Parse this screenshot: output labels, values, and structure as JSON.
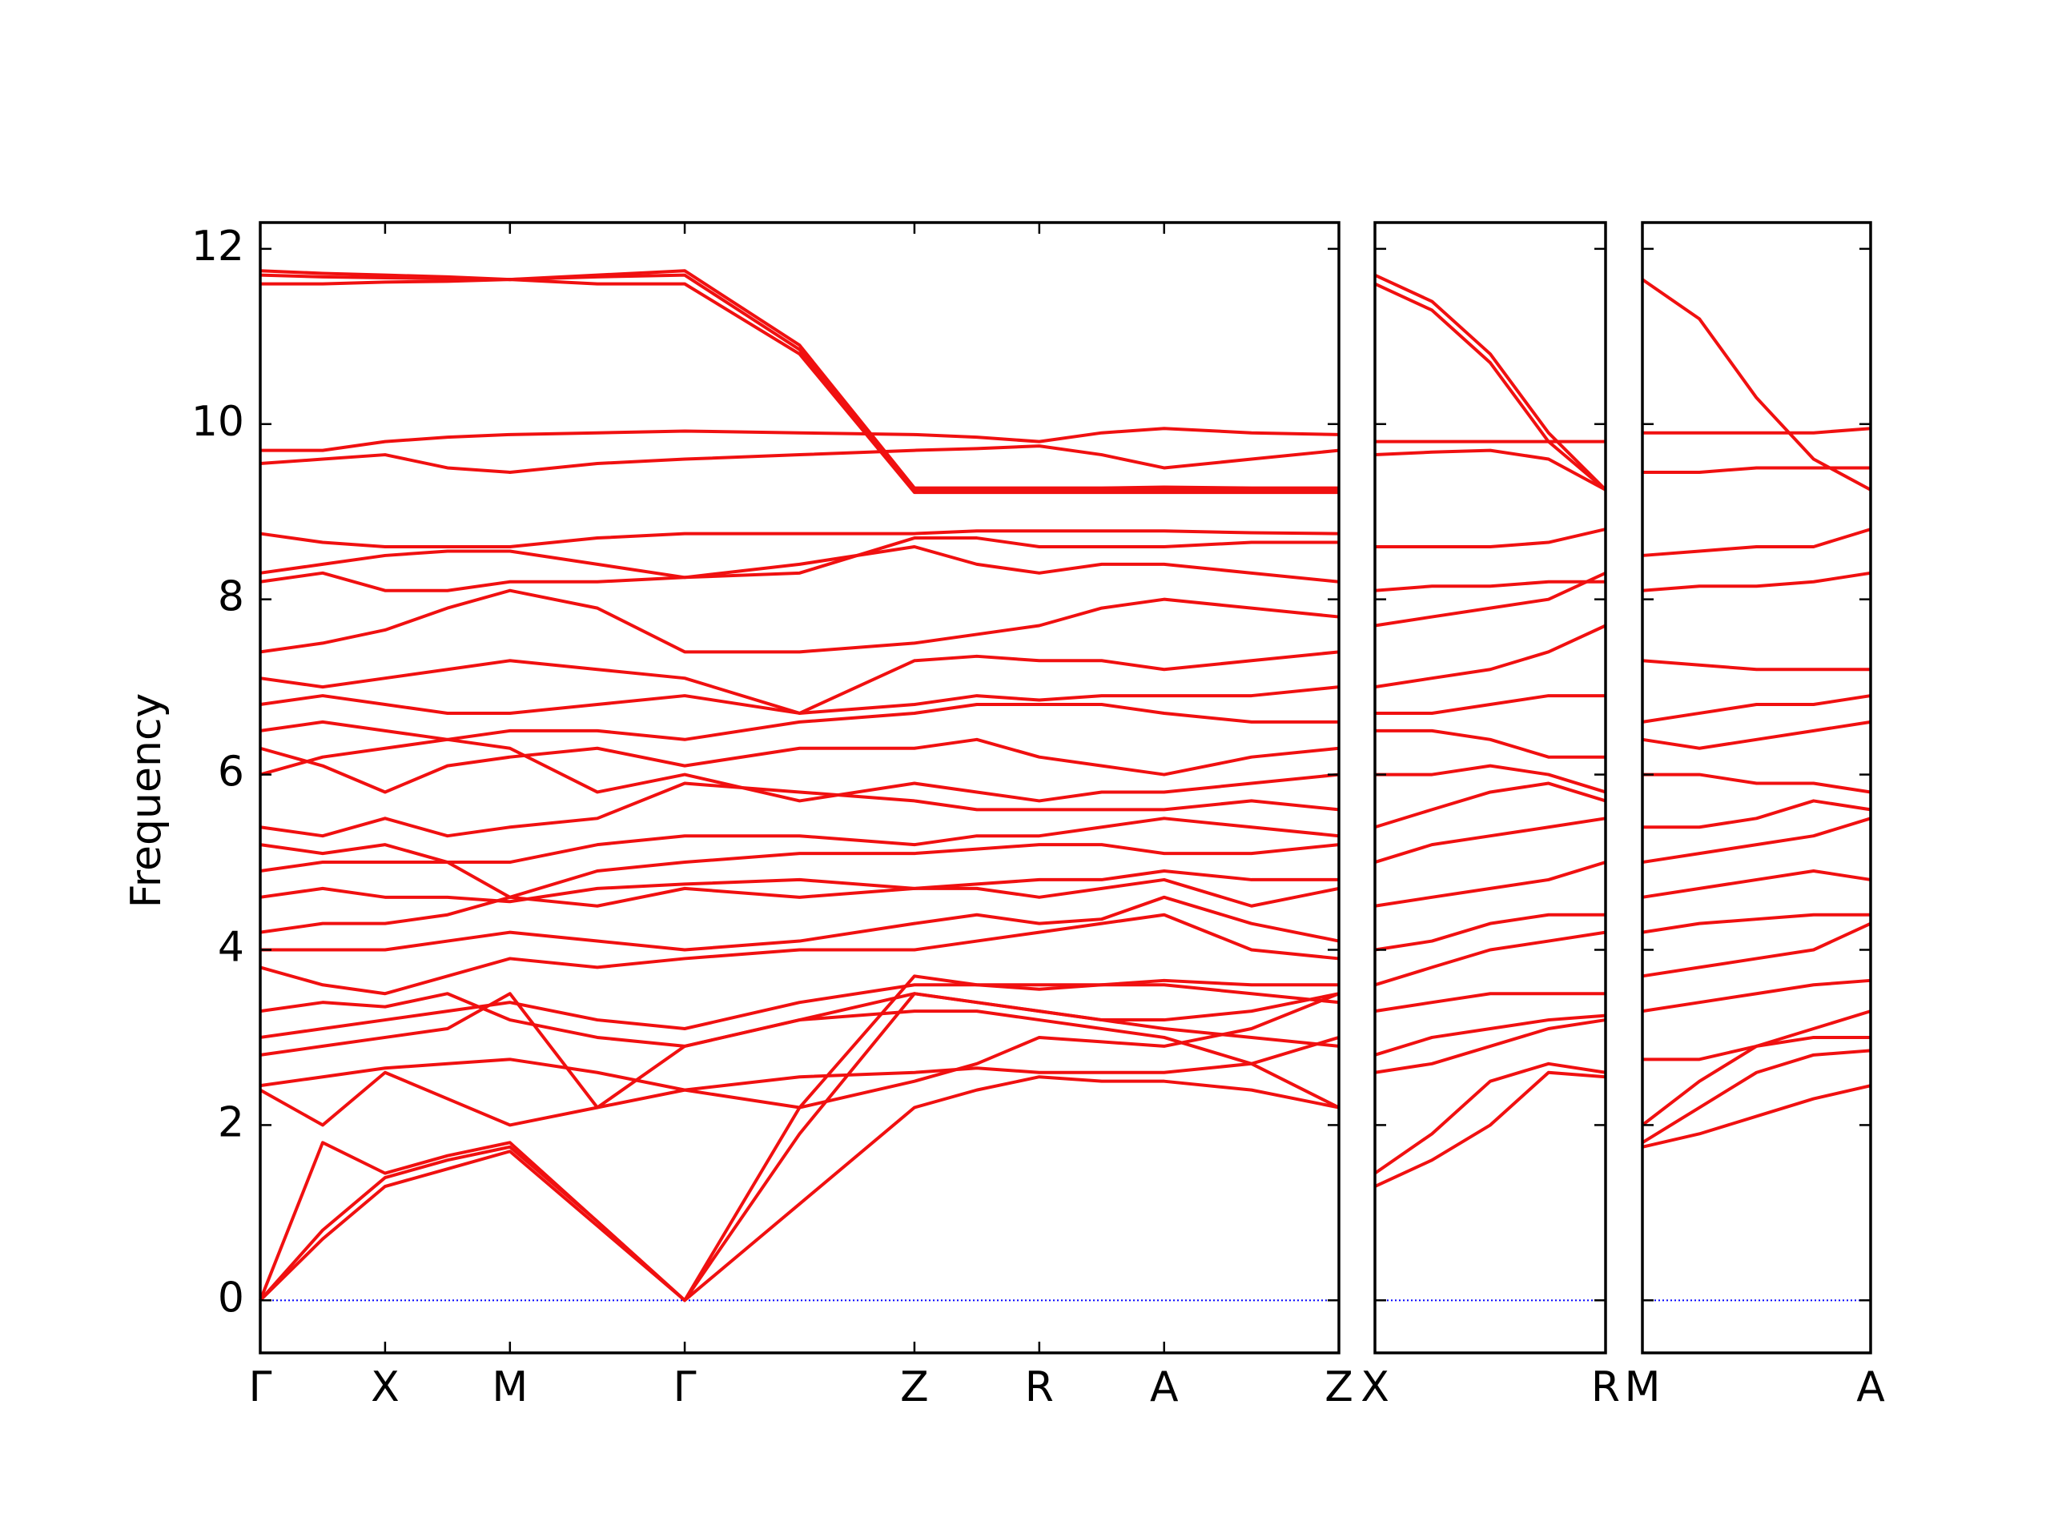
{
  "chart_data": [
    {
      "type": "line",
      "ylabel": "Frequency",
      "color": "#f01010",
      "zero_line_color": "#0000ff",
      "x": [
        0,
        0.25,
        0.5,
        0.75,
        1.0,
        1.35,
        1.7,
        2.16,
        2.62,
        2.87,
        3.12,
        3.37,
        3.62,
        3.97,
        4.32
      ],
      "xlim": [
        0,
        4.32
      ],
      "xticks": [
        {
          "value": 0,
          "label": "Γ"
        },
        {
          "value": 0.5,
          "label": "X"
        },
        {
          "value": 1.0,
          "label": "M"
        },
        {
          "value": 1.7,
          "label": "Γ"
        },
        {
          "value": 2.62,
          "label": "Z"
        },
        {
          "value": 3.12,
          "label": "R"
        },
        {
          "value": 3.62,
          "label": "A"
        },
        {
          "value": 4.32,
          "label": "Z"
        }
      ],
      "ylim": [
        -0.6,
        12.3
      ],
      "yticks": [
        0,
        2,
        4,
        6,
        8,
        10,
        12
      ],
      "series": [
        {
          "values": [
            0,
            0.7,
            1.3,
            1.5,
            1.7,
            0.85,
            0,
            1.1,
            2.2,
            2.4,
            2.55,
            2.5,
            2.5,
            2.4,
            2.2
          ]
        },
        {
          "values": [
            0,
            0.8,
            1.4,
            1.6,
            1.75,
            0.9,
            0,
            1.9,
            3.5,
            3.4,
            3.3,
            3.2,
            3.1,
            3.0,
            2.9
          ]
        },
        {
          "values": [
            0,
            1.8,
            1.45,
            1.65,
            1.8,
            0.9,
            0,
            2.2,
            3.7,
            3.6,
            3.55,
            3.6,
            3.6,
            3.5,
            3.4
          ]
        },
        {
          "values": [
            2.4,
            2.0,
            2.6,
            2.3,
            2.0,
            2.2,
            2.4,
            2.55,
            2.6,
            2.65,
            2.6,
            2.6,
            2.6,
            2.7,
            3.0
          ]
        },
        {
          "values": [
            2.45,
            2.55,
            2.65,
            2.7,
            2.75,
            2.6,
            2.4,
            2.2,
            2.5,
            2.7,
            3.0,
            2.95,
            2.9,
            3.1,
            3.5
          ]
        },
        {
          "values": [
            2.8,
            2.9,
            3.0,
            3.1,
            3.5,
            2.2,
            2.9,
            3.2,
            3.3,
            3.3,
            3.2,
            3.1,
            3.0,
            2.7,
            2.2
          ]
        },
        {
          "values": [
            3.0,
            3.1,
            3.2,
            3.3,
            3.4,
            3.2,
            3.1,
            3.4,
            3.6,
            3.6,
            3.6,
            3.6,
            3.65,
            3.6,
            3.6
          ]
        },
        {
          "values": [
            3.3,
            3.4,
            3.35,
            3.5,
            3.2,
            3.0,
            2.9,
            3.2,
            3.5,
            3.4,
            3.3,
            3.2,
            3.2,
            3.3,
            3.5
          ]
        },
        {
          "values": [
            3.8,
            3.6,
            3.5,
            3.7,
            3.9,
            3.8,
            3.9,
            4.0,
            4.0,
            4.1,
            4.2,
            4.3,
            4.4,
            4.0,
            3.9
          ]
        },
        {
          "values": [
            4.0,
            4.0,
            4.0,
            4.1,
            4.2,
            4.1,
            4.0,
            4.1,
            4.3,
            4.4,
            4.3,
            4.35,
            4.6,
            4.3,
            4.1
          ]
        },
        {
          "values": [
            4.2,
            4.3,
            4.3,
            4.4,
            4.6,
            4.5,
            4.7,
            4.6,
            4.7,
            4.7,
            4.6,
            4.7,
            4.8,
            4.5,
            4.7
          ]
        },
        {
          "values": [
            4.6,
            4.7,
            4.6,
            4.6,
            4.55,
            4.7,
            4.75,
            4.8,
            4.7,
            4.75,
            4.8,
            4.8,
            4.9,
            4.8,
            4.8
          ]
        },
        {
          "values": [
            4.9,
            5.0,
            5.0,
            5.0,
            4.6,
            4.9,
            5.0,
            5.1,
            5.1,
            5.15,
            5.2,
            5.2,
            5.1,
            5.1,
            5.2
          ]
        },
        {
          "values": [
            5.2,
            5.1,
            5.2,
            5.0,
            5.0,
            5.2,
            5.3,
            5.3,
            5.2,
            5.3,
            5.3,
            5.4,
            5.5,
            5.4,
            5.3
          ]
        },
        {
          "values": [
            5.4,
            5.3,
            5.5,
            5.3,
            5.4,
            5.5,
            5.9,
            5.8,
            5.7,
            5.6,
            5.6,
            5.6,
            5.6,
            5.7,
            5.6
          ]
        },
        {
          "values": [
            6.0,
            6.2,
            6.3,
            6.4,
            6.3,
            5.8,
            6.0,
            5.7,
            5.9,
            5.8,
            5.7,
            5.8,
            5.8,
            5.9,
            6.0
          ]
        },
        {
          "values": [
            6.3,
            6.1,
            5.8,
            6.1,
            6.2,
            6.3,
            6.1,
            6.3,
            6.3,
            6.4,
            6.2,
            6.1,
            6.0,
            6.2,
            6.3
          ]
        },
        {
          "values": [
            6.5,
            6.6,
            6.5,
            6.4,
            6.5,
            6.5,
            6.4,
            6.6,
            6.7,
            6.8,
            6.8,
            6.8,
            6.7,
            6.6,
            6.6
          ]
        },
        {
          "values": [
            6.8,
            6.9,
            6.8,
            6.7,
            6.7,
            6.8,
            6.9,
            6.7,
            6.8,
            6.9,
            6.85,
            6.9,
            6.9,
            6.9,
            7.0
          ]
        },
        {
          "values": [
            7.1,
            7.0,
            7.1,
            7.2,
            7.3,
            7.2,
            7.1,
            6.7,
            7.3,
            7.35,
            7.3,
            7.3,
            7.2,
            7.3,
            7.4
          ]
        },
        {
          "values": [
            7.4,
            7.5,
            7.65,
            7.9,
            8.1,
            7.9,
            7.4,
            7.4,
            7.5,
            7.6,
            7.7,
            7.9,
            8.0,
            7.9,
            7.8
          ]
        },
        {
          "values": [
            8.2,
            8.3,
            8.1,
            8.1,
            8.2,
            8.2,
            8.25,
            8.4,
            8.6,
            8.4,
            8.3,
            8.4,
            8.4,
            8.3,
            8.2
          ]
        },
        {
          "values": [
            8.3,
            8.4,
            8.5,
            8.55,
            8.55,
            8.4,
            8.25,
            8.3,
            8.7,
            8.7,
            8.6,
            8.6,
            8.6,
            8.65,
            8.65
          ]
        },
        {
          "values": [
            8.75,
            8.65,
            8.6,
            8.6,
            8.6,
            8.7,
            8.75,
            8.75,
            8.75,
            8.78,
            8.78,
            8.78,
            8.78,
            8.76,
            8.75
          ]
        },
        {
          "values": [
            9.55,
            9.6,
            9.65,
            9.5,
            9.45,
            9.55,
            9.6,
            9.65,
            9.7,
            9.72,
            9.75,
            9.65,
            9.5,
            9.6,
            9.7
          ]
        },
        {
          "values": [
            9.7,
            9.7,
            9.8,
            9.85,
            9.88,
            9.9,
            9.92,
            9.9,
            9.88,
            9.85,
            9.8,
            9.9,
            9.95,
            9.9,
            9.88
          ]
        },
        {
          "values": [
            11.6,
            11.6,
            11.62,
            11.63,
            11.65,
            11.6,
            11.6,
            10.8,
            9.22,
            9.22,
            9.22,
            9.22,
            9.22,
            9.22,
            9.22
          ]
        },
        {
          "values": [
            11.7,
            11.68,
            11.67,
            11.66,
            11.65,
            11.7,
            11.75,
            10.9,
            9.27,
            9.27,
            9.27,
            9.27,
            9.28,
            9.27,
            9.27
          ]
        },
        {
          "values": [
            11.75,
            11.72,
            11.7,
            11.68,
            11.65,
            11.68,
            11.7,
            10.85,
            9.25,
            9.25,
            9.25,
            9.25,
            9.25,
            9.25,
            9.25
          ]
        }
      ]
    },
    {
      "type": "line",
      "color": "#f01010",
      "zero_line_color": "#0000ff",
      "x": [
        0,
        0.23,
        0.465,
        0.7,
        0.93
      ],
      "xlim": [
        0,
        0.93
      ],
      "xticks": [
        {
          "value": 0,
          "label": "X"
        },
        {
          "value": 0.93,
          "label": "R"
        }
      ],
      "ylim": [
        -0.6,
        12.3
      ],
      "yticks": [
        0,
        2,
        4,
        6,
        8,
        10,
        12
      ],
      "series": [
        {
          "values": [
            1.3,
            1.6,
            2.0,
            2.6,
            2.55
          ]
        },
        {
          "values": [
            1.45,
            1.9,
            2.5,
            2.7,
            2.6
          ]
        },
        {
          "values": [
            2.6,
            2.7,
            2.9,
            3.1,
            3.2
          ]
        },
        {
          "values": [
            2.8,
            3.0,
            3.1,
            3.2,
            3.25
          ]
        },
        {
          "values": [
            3.3,
            3.4,
            3.5,
            3.5,
            3.5
          ]
        },
        {
          "values": [
            3.6,
            3.8,
            4.0,
            4.1,
            4.2
          ]
        },
        {
          "values": [
            4.0,
            4.1,
            4.3,
            4.4,
            4.4
          ]
        },
        {
          "values": [
            4.5,
            4.6,
            4.7,
            4.8,
            5.0
          ]
        },
        {
          "values": [
            5.0,
            5.2,
            5.3,
            5.4,
            5.5
          ]
        },
        {
          "values": [
            5.4,
            5.6,
            5.8,
            5.9,
            5.7
          ]
        },
        {
          "values": [
            6.0,
            6.0,
            6.1,
            6.0,
            5.8
          ]
        },
        {
          "values": [
            6.5,
            6.5,
            6.4,
            6.2,
            6.2
          ]
        },
        {
          "values": [
            6.7,
            6.7,
            6.8,
            6.9,
            6.9
          ]
        },
        {
          "values": [
            7.0,
            7.1,
            7.2,
            7.4,
            7.7
          ]
        },
        {
          "values": [
            7.7,
            7.8,
            7.9,
            8.0,
            8.3
          ]
        },
        {
          "values": [
            8.1,
            8.15,
            8.15,
            8.2,
            8.2
          ]
        },
        {
          "values": [
            8.6,
            8.6,
            8.6,
            8.65,
            8.8
          ]
        },
        {
          "values": [
            9.65,
            9.68,
            9.7,
            9.6,
            9.25
          ]
        },
        {
          "values": [
            9.8,
            9.8,
            9.8,
            9.8,
            9.8
          ]
        },
        {
          "values": [
            11.6,
            11.3,
            10.7,
            9.8,
            9.25
          ]
        },
        {
          "values": [
            11.7,
            11.4,
            10.8,
            9.9,
            9.25
          ]
        }
      ]
    },
    {
      "type": "line",
      "color": "#f01010",
      "zero_line_color": "#0000ff",
      "x": [
        0,
        0.2275,
        0.455,
        0.6825,
        0.91
      ],
      "xlim": [
        0,
        0.91
      ],
      "xticks": [
        {
          "value": 0,
          "label": "M"
        },
        {
          "value": 0.91,
          "label": "A"
        }
      ],
      "ylim": [
        -0.6,
        12.3
      ],
      "yticks": [
        0,
        2,
        4,
        6,
        8,
        10,
        12
      ],
      "series": [
        {
          "values": [
            1.75,
            1.9,
            2.1,
            2.3,
            2.45
          ]
        },
        {
          "values": [
            1.8,
            2.2,
            2.6,
            2.8,
            2.85
          ]
        },
        {
          "values": [
            2.0,
            2.5,
            2.9,
            3.0,
            3.0
          ]
        },
        {
          "values": [
            2.75,
            2.75,
            2.9,
            3.1,
            3.3
          ]
        },
        {
          "values": [
            3.3,
            3.4,
            3.5,
            3.6,
            3.65
          ]
        },
        {
          "values": [
            3.7,
            3.8,
            3.9,
            4.0,
            4.3
          ]
        },
        {
          "values": [
            4.2,
            4.3,
            4.35,
            4.4,
            4.4
          ]
        },
        {
          "values": [
            4.6,
            4.7,
            4.8,
            4.9,
            4.8
          ]
        },
        {
          "values": [
            5.0,
            5.1,
            5.2,
            5.3,
            5.5
          ]
        },
        {
          "values": [
            5.4,
            5.4,
            5.5,
            5.7,
            5.6
          ]
        },
        {
          "values": [
            6.0,
            6.0,
            5.9,
            5.9,
            5.8
          ]
        },
        {
          "values": [
            6.4,
            6.3,
            6.4,
            6.5,
            6.6
          ]
        },
        {
          "values": [
            6.6,
            6.7,
            6.8,
            6.8,
            6.9
          ]
        },
        {
          "values": [
            7.3,
            7.25,
            7.2,
            7.2,
            7.2
          ]
        },
        {
          "values": [
            8.1,
            8.15,
            8.15,
            8.2,
            8.3
          ]
        },
        {
          "values": [
            8.5,
            8.55,
            8.6,
            8.6,
            8.8
          ]
        },
        {
          "values": [
            9.45,
            9.45,
            9.5,
            9.5,
            9.5
          ]
        },
        {
          "values": [
            9.9,
            9.9,
            9.9,
            9.9,
            9.95
          ]
        },
        {
          "values": [
            11.65,
            11.2,
            10.3,
            9.6,
            9.25
          ]
        }
      ]
    }
  ]
}
